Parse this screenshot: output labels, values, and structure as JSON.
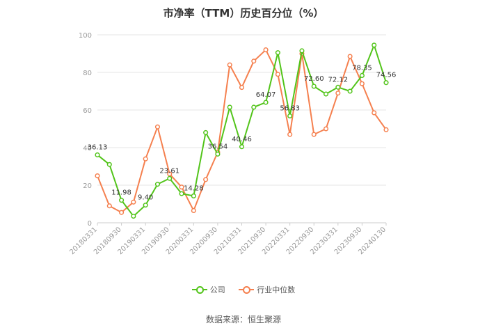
{
  "title": "市净率（TTM）历史百分位（%）",
  "source": "数据来源：恒生聚源",
  "colors": {
    "company": "#52c41a",
    "industry": "#f5804f",
    "grid": "#e6e6e6",
    "axis": "#999999"
  },
  "chart_data": {
    "type": "line",
    "title": "市净率（TTM）历史百分位（%）",
    "xlabel": "",
    "ylabel": "",
    "ylim": [
      0,
      100
    ],
    "yticks": [
      0,
      20,
      40,
      60,
      80,
      100
    ],
    "grid": true,
    "legend": "bottom",
    "x": [
      "20180331",
      "20180630",
      "20180930",
      "20181231",
      "20190331",
      "20190630",
      "20190930",
      "20191231",
      "20200331",
      "20200630",
      "20200930",
      "20201231",
      "20210331",
      "20210630",
      "20210930",
      "20211231",
      "20220331",
      "20220630",
      "20220930",
      "20221231",
      "20230331",
      "20230630",
      "20230930",
      "20231231",
      "20240130"
    ],
    "x_tick_labels": [
      "20180331",
      "20180930",
      "20190331",
      "20190930",
      "20200331",
      "20200930",
      "20210331",
      "20210930",
      "20220331",
      "20220930",
      "20230331",
      "20230930",
      "20240130"
    ],
    "series": [
      {
        "name": "公司",
        "color": "#52c41a",
        "values": [
          36.13,
          31,
          11.98,
          3.5,
          9.4,
          20.5,
          23.61,
          15.5,
          14.28,
          48,
          36.54,
          61.5,
          40.46,
          61.5,
          64.07,
          90.5,
          56.83,
          91.5,
          72.6,
          68.5,
          72.12,
          70,
          78.35,
          94.5,
          74.56
        ],
        "labels": [
          "36.13",
          "",
          "11.98",
          "",
          "9.40",
          "",
          "23.61",
          "",
          "14.28",
          "",
          "36.54",
          "",
          "40.46",
          "",
          "64.07",
          "",
          "56.83",
          "",
          "72.60",
          "",
          "72.12",
          "",
          "78.35",
          "",
          "74.56"
        ]
      },
      {
        "name": "行业中位数",
        "color": "#f5804f",
        "values": [
          25,
          9,
          5.5,
          11,
          34,
          51,
          26,
          19,
          6.5,
          23,
          37.5,
          84,
          72,
          86,
          92,
          79,
          47,
          90,
          47,
          50,
          69,
          88.5,
          74,
          58.5,
          49.5
        ]
      }
    ]
  }
}
